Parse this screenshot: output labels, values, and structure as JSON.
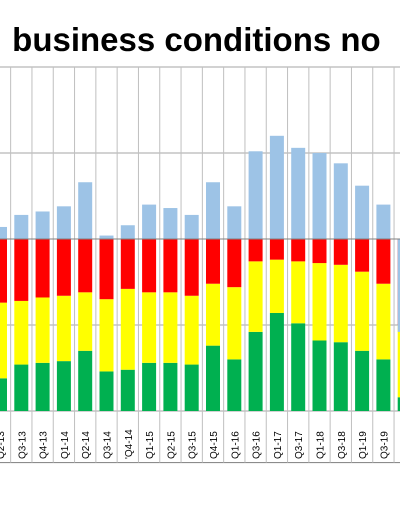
{
  "chart_data": {
    "type": "bar",
    "title": ": business conditions no",
    "categories": [
      "Q2-13",
      "Q3-13",
      "Q4-13",
      "Q1-14",
      "Q2-14",
      "Q3-14",
      "'Q4-14",
      "Q1-15",
      "Q2-15",
      "Q3-15",
      "Q4-15",
      "Q1-16",
      "Q3-16",
      "Q1-17",
      "Q3-17",
      "Q1-18",
      "Q3-18",
      "Q1-19",
      "Q3-19",
      "Q1-20"
    ],
    "series": [
      {
        "color": "#00b050",
        "values": [
          19,
          27,
          28,
          29,
          35,
          23,
          24,
          28,
          28,
          27,
          38,
          30,
          46,
          57,
          51,
          41,
          40,
          35,
          30,
          8
        ]
      },
      {
        "color": "#ffff00",
        "values": [
          44,
          37,
          38,
          38,
          34,
          42,
          47,
          41,
          41,
          40,
          36,
          42,
          41,
          31,
          36,
          45,
          45,
          46,
          44,
          42
        ]
      },
      {
        "color": "#ff0000",
        "values": [
          37,
          36,
          34,
          33,
          31,
          35,
          29,
          31,
          31,
          33,
          26,
          28,
          13,
          12,
          13,
          14,
          15,
          19,
          26,
          50
        ]
      },
      {
        "color": "#9dc3e6",
        "values": [
          -7,
          -14,
          -16,
          -19,
          -33,
          -2,
          -8,
          -20,
          -18,
          -14,
          -33,
          -19,
          -51,
          -60,
          -53,
          -50,
          -44,
          -31,
          -20,
          54
        ]
      }
    ],
    "ylim": [
      -130,
      100
    ],
    "grid": true
  }
}
